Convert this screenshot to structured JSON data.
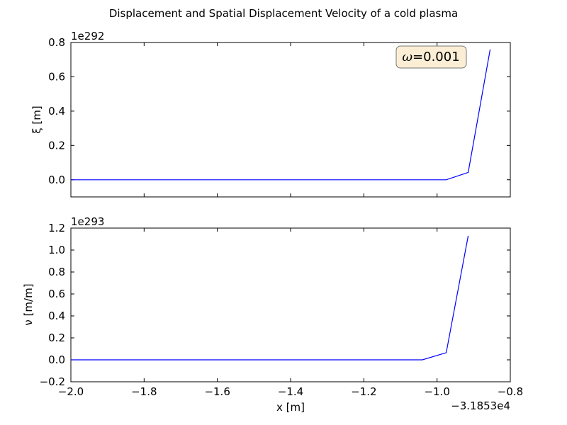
{
  "figure": {
    "title": "Displacement and Spatial Displacement Velocity of a cold plasma"
  },
  "chart_data": [
    {
      "type": "line",
      "ylabel": "ξ [m]",
      "y_multiplier": "1e292",
      "xlim": [
        -2.0,
        -0.8
      ],
      "ylim": [
        -0.1,
        0.8
      ],
      "yticks": [
        "0.0",
        "0.2",
        "0.4",
        "0.6",
        "0.8"
      ],
      "ytick_values": [
        0.0,
        0.2,
        0.4,
        0.6,
        0.8
      ],
      "annotation": {
        "symbol": "ω",
        "text": "=0.001"
      },
      "series": [
        {
          "color": "#0000ff",
          "x": [
            -2.0,
            -1.8,
            -1.6,
            -1.4,
            -1.2,
            -1.04,
            -0.975,
            -0.915,
            -0.855
          ],
          "y": [
            0,
            0,
            0,
            0,
            0,
            0,
            0,
            0.043,
            0.76
          ]
        }
      ]
    },
    {
      "type": "line",
      "ylabel": "ν [m/m]",
      "xlabel": "x [m]",
      "y_multiplier": "1e293",
      "x_offset_label": "−3.1853e4",
      "xlim": [
        -2.0,
        -0.8
      ],
      "ylim": [
        -0.2,
        1.2
      ],
      "xticks": [
        "−2.0",
        "−1.8",
        "−1.6",
        "−1.4",
        "−1.2",
        "−1.0",
        "−0.8"
      ],
      "xtick_values": [
        -2.0,
        -1.8,
        -1.6,
        -1.4,
        -1.2,
        -1.0,
        -0.8
      ],
      "yticks": [
        "−0.2",
        "0.0",
        "0.2",
        "0.4",
        "0.6",
        "0.8",
        "1.0",
        "1.2"
      ],
      "ytick_values": [
        -0.2,
        0.0,
        0.2,
        0.4,
        0.6,
        0.8,
        1.0,
        1.2
      ],
      "series": [
        {
          "color": "#0000ff",
          "x": [
            -2.0,
            -1.8,
            -1.6,
            -1.4,
            -1.2,
            -1.04,
            -0.975,
            -0.915
          ],
          "y": [
            0,
            0,
            0,
            0,
            0,
            0,
            0.065,
            1.13
          ]
        }
      ]
    }
  ]
}
